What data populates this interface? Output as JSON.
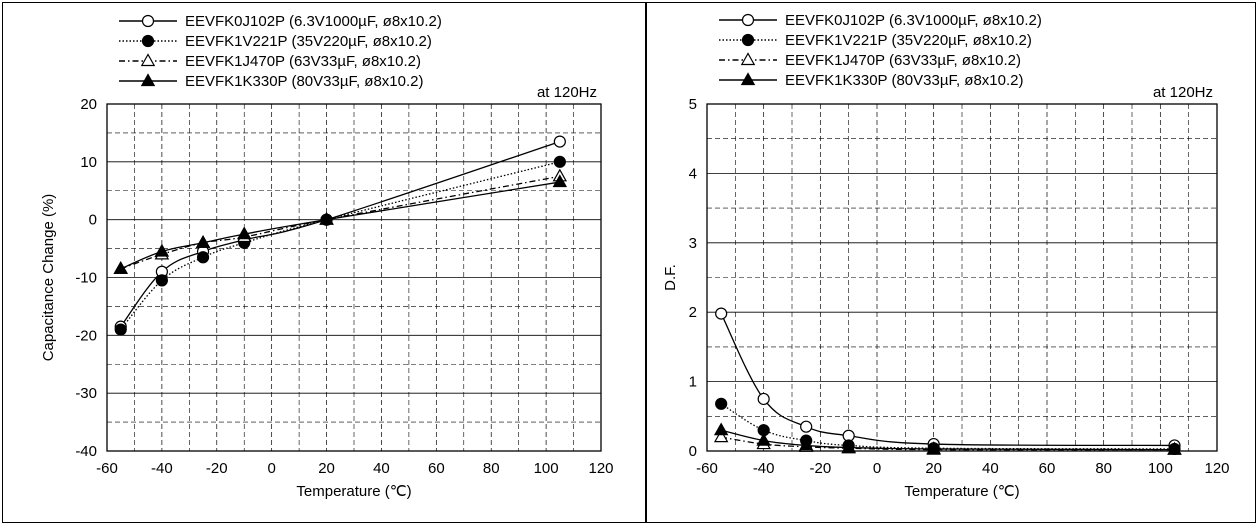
{
  "chart_data": [
    {
      "type": "line",
      "title": "",
      "note": "at 120Hz",
      "xlabel": "Temperature (℃)",
      "ylabel": "Capacitance Change (%)",
      "xlim": [
        -60,
        120
      ],
      "ylim": [
        -40,
        20
      ],
      "xticks": [
        "-60",
        "-40",
        "-20",
        "0",
        "20",
        "40",
        "60",
        "80",
        "100",
        "120"
      ],
      "yticks": [
        "20",
        "10",
        "0",
        "-10",
        "-20",
        "-30",
        "-40"
      ],
      "grid": true,
      "legend_position": "top-left",
      "x": [
        -55,
        -40,
        -25,
        -10,
        20,
        105
      ],
      "series": [
        {
          "name": "EEVFK0J102P (6.3V1000µF, ø8x10.2)",
          "marker": "open-circle",
          "line": "solid",
          "values": [
            -18.5,
            -9,
            -5.5,
            -3.5,
            0,
            13.5
          ]
        },
        {
          "name": "EEVFK1V221P (35V220µF, ø8x10.2)",
          "marker": "filled-circle",
          "line": "dotted",
          "values": [
            -19,
            -10.5,
            -6.5,
            -4,
            0,
            10
          ]
        },
        {
          "name": "EEVFK1J470P (63V33µF, ø8x10.2)",
          "marker": "open-triangle",
          "line": "dash-dot",
          "values": [
            -8.5,
            -6,
            -4,
            -3,
            0,
            7.5
          ]
        },
        {
          "name": "EEVFK1K330P (80V33µF, ø8x10.2)",
          "marker": "filled-triangle",
          "line": "solid",
          "values": [
            -8.5,
            -5.5,
            -4,
            -2.5,
            0,
            6.5
          ]
        }
      ]
    },
    {
      "type": "line",
      "title": "",
      "note": "at 120Hz",
      "xlabel": "Temperature (℃)",
      "ylabel": "D.F.",
      "xlim": [
        -60,
        120
      ],
      "ylim": [
        0,
        5
      ],
      "xticks": [
        "-60",
        "-40",
        "-20",
        "0",
        "20",
        "40",
        "60",
        "80",
        "100",
        "120"
      ],
      "yticks": [
        "5",
        "4",
        "3",
        "2",
        "1",
        "0"
      ],
      "grid": true,
      "legend_position": "top-left",
      "x": [
        -55,
        -40,
        -25,
        -10,
        20,
        105
      ],
      "series": [
        {
          "name": "EEVFK0J102P (6.3V1000µF, ø8x10.2)",
          "marker": "open-circle",
          "line": "solid",
          "values": [
            1.98,
            0.75,
            0.35,
            0.22,
            0.1,
            0.08
          ]
        },
        {
          "name": "EEVFK1V221P (35V220µF, ø8x10.2)",
          "marker": "filled-circle",
          "line": "dotted",
          "values": [
            0.68,
            0.3,
            0.15,
            0.08,
            0.04,
            0.03
          ]
        },
        {
          "name": "EEVFK1J470P (63V33µF, ø8x10.2)",
          "marker": "open-triangle",
          "line": "dash-dot",
          "values": [
            0.2,
            0.1,
            0.06,
            0.04,
            0.02,
            0.02
          ]
        },
        {
          "name": "EEVFK1K330P (80V33µF, ø8x10.2)",
          "marker": "filled-triangle",
          "line": "solid",
          "values": [
            0.3,
            0.15,
            0.08,
            0.05,
            0.03,
            0.02
          ]
        }
      ]
    }
  ]
}
